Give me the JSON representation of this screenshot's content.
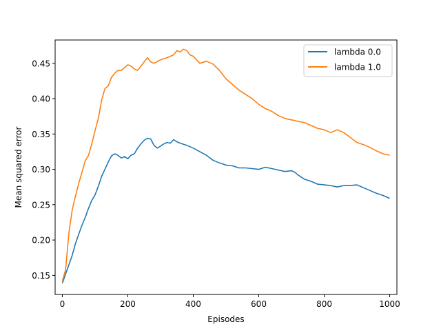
{
  "chart_data": {
    "type": "line",
    "title": "",
    "xlabel": "Episodes",
    "ylabel": "Mean squared error",
    "xlim": [
      -22,
      1022
    ],
    "ylim": [
      0.123,
      0.483
    ],
    "xticks": [
      0,
      200,
      400,
      600,
      800,
      1000
    ],
    "xtick_labels": [
      "0",
      "200",
      "400",
      "600",
      "800",
      "1000"
    ],
    "yticks": [
      0.15,
      0.2,
      0.25,
      0.3,
      0.35,
      0.4,
      0.45
    ],
    "ytick_labels": [
      "0.15",
      "0.20",
      "0.25",
      "0.30",
      "0.35",
      "0.40",
      "0.45"
    ],
    "grid": false,
    "legend_position": "top-right",
    "series": [
      {
        "name": "lambda 0.0",
        "color": "#1f77b4",
        "x": [
          0,
          10,
          20,
          30,
          40,
          50,
          60,
          70,
          80,
          90,
          100,
          110,
          120,
          130,
          140,
          150,
          160,
          170,
          180,
          190,
          200,
          210,
          220,
          230,
          240,
          250,
          260,
          270,
          280,
          290,
          300,
          310,
          320,
          330,
          340,
          350,
          360,
          380,
          400,
          420,
          440,
          460,
          480,
          500,
          520,
          540,
          560,
          580,
          600,
          620,
          640,
          660,
          680,
          700,
          710,
          720,
          740,
          760,
          780,
          800,
          820,
          840,
          860,
          880,
          900,
          920,
          940,
          960,
          980,
          1000
        ],
        "y": [
          0.139,
          0.152,
          0.165,
          0.178,
          0.195,
          0.208,
          0.221,
          0.232,
          0.245,
          0.256,
          0.264,
          0.276,
          0.29,
          0.3,
          0.31,
          0.319,
          0.322,
          0.32,
          0.316,
          0.318,
          0.315,
          0.32,
          0.322,
          0.33,
          0.336,
          0.341,
          0.344,
          0.343,
          0.334,
          0.33,
          0.333,
          0.336,
          0.338,
          0.337,
          0.342,
          0.339,
          0.337,
          0.334,
          0.33,
          0.325,
          0.32,
          0.313,
          0.309,
          0.306,
          0.305,
          0.302,
          0.302,
          0.301,
          0.3,
          0.303,
          0.301,
          0.299,
          0.297,
          0.298,
          0.296,
          0.292,
          0.286,
          0.283,
          0.279,
          0.278,
          0.277,
          0.275,
          0.277,
          0.277,
          0.278,
          0.274,
          0.27,
          0.266,
          0.263,
          0.259
        ]
      },
      {
        "name": "lambda 1.0",
        "color": "#ff7f0e",
        "x": [
          0,
          10,
          20,
          30,
          40,
          50,
          60,
          70,
          80,
          90,
          100,
          110,
          120,
          130,
          140,
          150,
          160,
          170,
          180,
          190,
          200,
          210,
          220,
          230,
          240,
          250,
          260,
          270,
          280,
          300,
          320,
          340,
          350,
          360,
          370,
          380,
          390,
          400,
          420,
          440,
          460,
          480,
          500,
          520,
          540,
          560,
          580,
          600,
          620,
          640,
          660,
          680,
          700,
          720,
          740,
          760,
          780,
          800,
          820,
          840,
          860,
          880,
          900,
          920,
          940,
          960,
          980,
          1000
        ],
        "y": [
          0.142,
          0.158,
          0.21,
          0.242,
          0.262,
          0.28,
          0.296,
          0.312,
          0.32,
          0.336,
          0.355,
          0.372,
          0.398,
          0.414,
          0.418,
          0.43,
          0.436,
          0.44,
          0.44,
          0.444,
          0.448,
          0.446,
          0.442,
          0.44,
          0.446,
          0.452,
          0.458,
          0.452,
          0.45,
          0.455,
          0.458,
          0.462,
          0.468,
          0.466,
          0.47,
          0.468,
          0.462,
          0.46,
          0.45,
          0.453,
          0.449,
          0.44,
          0.428,
          0.42,
          0.412,
          0.406,
          0.4,
          0.392,
          0.386,
          0.382,
          0.376,
          0.372,
          0.37,
          0.368,
          0.366,
          0.362,
          0.358,
          0.356,
          0.352,
          0.356,
          0.352,
          0.345,
          0.338,
          0.335,
          0.331,
          0.326,
          0.322,
          0.32
        ]
      }
    ]
  }
}
